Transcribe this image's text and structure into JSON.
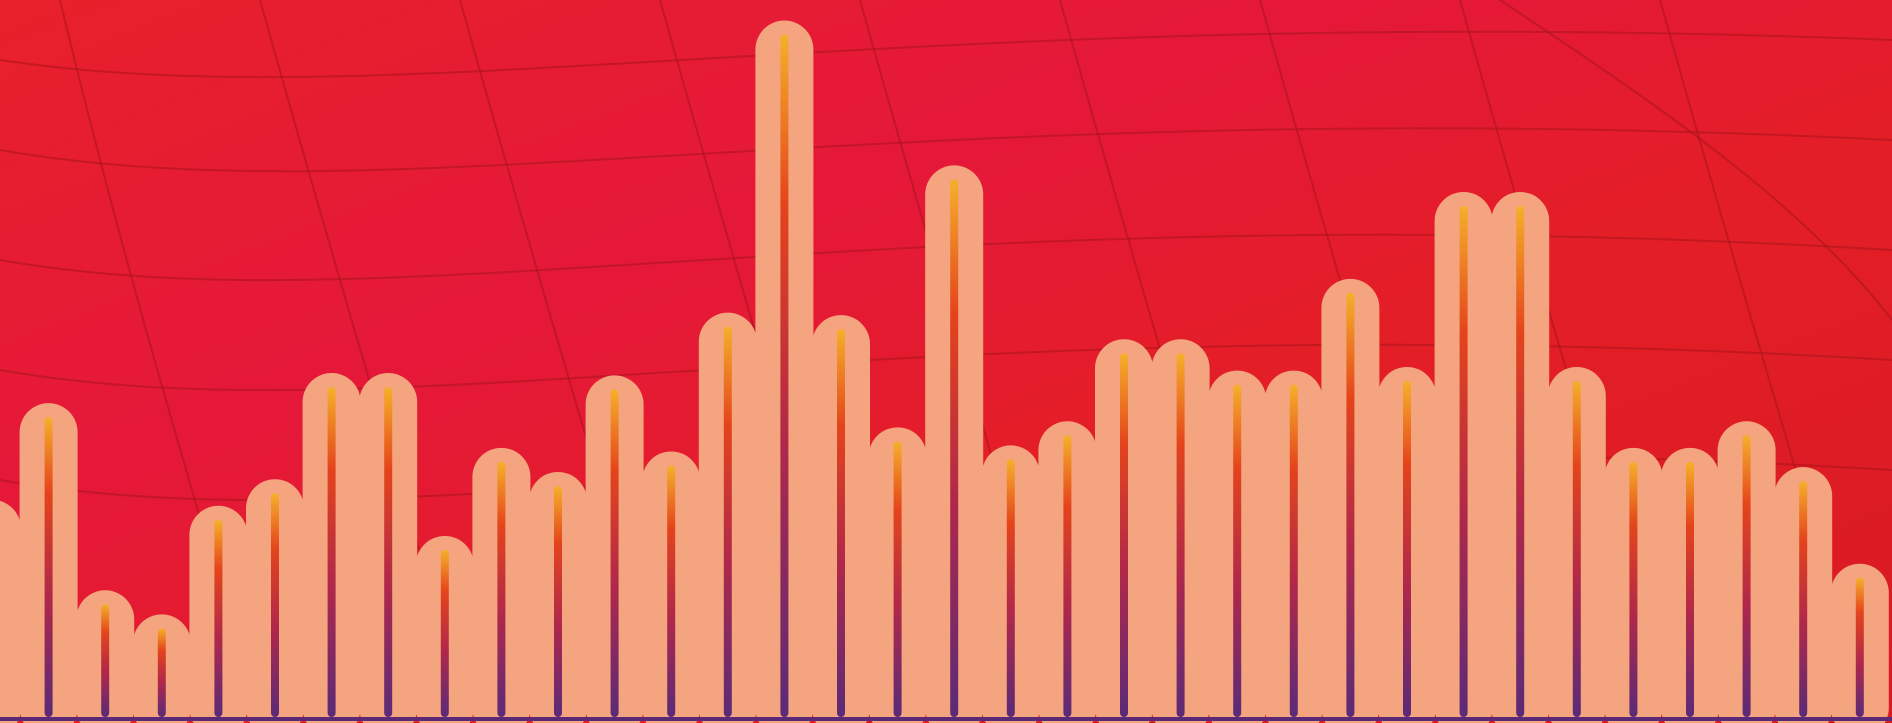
{
  "chart_data": {
    "type": "bar",
    "values": [
      180,
      260,
      105,
      85,
      175,
      197,
      285,
      285,
      150,
      223,
      203,
      283,
      220,
      335,
      577,
      333,
      240,
      457,
      225,
      245,
      313,
      313,
      287,
      287,
      363,
      290,
      435,
      435,
      290,
      223,
      223,
      245,
      207,
      127
    ],
    "color": "#f4a47e"
  }
}
